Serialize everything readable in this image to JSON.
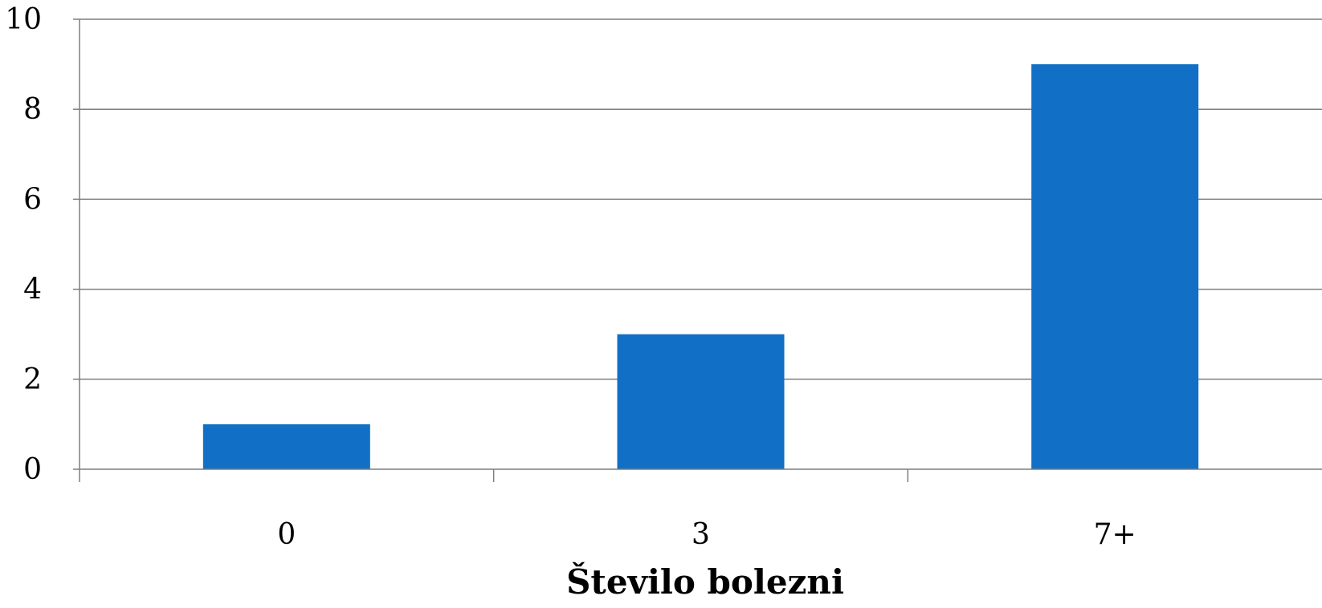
{
  "chart_data": {
    "type": "bar",
    "categories": [
      "0",
      "3",
      "7+"
    ],
    "values": [
      1,
      3,
      9
    ],
    "xlabel": "Število bolezni",
    "ylim": [
      0,
      10
    ],
    "yticks": [
      0,
      2,
      4,
      6,
      8,
      10
    ],
    "grid": true,
    "bar_color": "#1170C6",
    "gridline_color": "#7f7f7f",
    "axis_color": "#7f7f7f"
  }
}
